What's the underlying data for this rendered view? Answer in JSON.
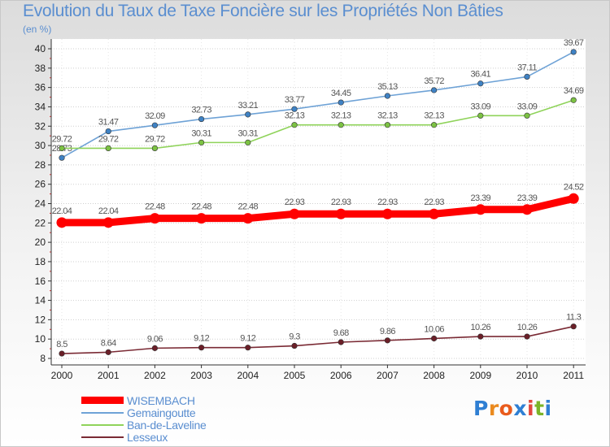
{
  "title": "Evolution du Taux de Taxe Foncière sur les Propriétés Non Bâties",
  "unit": "(en %)",
  "logo": {
    "letters": [
      "P",
      "r",
      "o",
      "x",
      "i",
      "t",
      "i"
    ],
    "colors": [
      "#2f7fd3",
      "#ea8a1f",
      "#e95b1c",
      "#2f7fd3",
      "#e2463c",
      "#7bb428",
      "#2f7fd3"
    ]
  },
  "chart_data": {
    "type": "line",
    "title": "Evolution du Taux de Taxe Foncière sur les Propriétés Non Bâties",
    "ylabel": "(en %)",
    "xlabel": "",
    "ylim": [
      8,
      40
    ],
    "yticks": [
      8,
      10,
      12,
      14,
      16,
      18,
      20,
      22,
      24,
      26,
      28,
      30,
      32,
      34,
      36,
      38,
      40
    ],
    "categories": [
      "2000",
      "2001",
      "2002",
      "2003",
      "2004",
      "2005",
      "2006",
      "2007",
      "2008",
      "2009",
      "2010",
      "2011"
    ],
    "grid": "horizontal",
    "series": [
      {
        "name": "Gemaingoutte",
        "color": "#6ea2d6",
        "marker": "#3f82c4",
        "values": [
          28.73,
          31.47,
          32.09,
          32.73,
          33.21,
          33.77,
          34.45,
          35.13,
          35.72,
          36.41,
          37.11,
          39.67
        ],
        "labels": [
          "28.73",
          "31.47",
          "32.09",
          "32.73",
          "33.21",
          "33.77",
          "34.45",
          "35.13",
          "35.72",
          "36.41",
          "37.11",
          "39.67"
        ]
      },
      {
        "name": "Ban-de-Laveline",
        "color": "#8fd35a",
        "marker": "#7cc243",
        "values": [
          29.72,
          29.72,
          29.72,
          30.31,
          30.31,
          32.13,
          32.13,
          32.13,
          32.13,
          33.09,
          33.09,
          34.69
        ],
        "labels": [
          "29.72",
          "29.72",
          "29.72",
          "30.31",
          "30.31",
          "32.13",
          "32.13",
          "32.13",
          "32.13",
          "33.09",
          "33.09",
          "34.69"
        ]
      },
      {
        "name": "WISEMBACH",
        "color": "#ff0000",
        "marker": "#ff0000",
        "values": [
          22.04,
          22.04,
          22.48,
          22.48,
          22.48,
          22.93,
          22.93,
          22.93,
          22.93,
          23.39,
          23.39,
          24.52
        ],
        "labels": [
          "22.04",
          "22.04",
          "22.48",
          "22.48",
          "22.48",
          "22.93",
          "22.93",
          "22.93",
          "22.93",
          "23.39",
          "23.39",
          "24.52"
        ]
      },
      {
        "name": "Lesseux",
        "color": "#7a2a34",
        "marker": "#6b1f28",
        "values": [
          8.5,
          8.64,
          9.06,
          9.12,
          9.12,
          9.3,
          9.68,
          9.86,
          10.06,
          10.26,
          10.26,
          11.3
        ],
        "labels": [
          "8.5",
          "8.64",
          "9.06",
          "9.12",
          "9.12",
          "9.3",
          "9.68",
          "9.86",
          "10.06",
          "10.26",
          "10.26",
          "11.3"
        ]
      }
    ],
    "legend": [
      {
        "name": "WISEMBACH",
        "color": "#ff0000"
      },
      {
        "name": "Gemaingoutte",
        "color": "#6ea2d6"
      },
      {
        "name": "Ban-de-Laveline",
        "color": "#8fd35a"
      },
      {
        "name": "Lesseux",
        "color": "#7a2a34"
      }
    ]
  }
}
